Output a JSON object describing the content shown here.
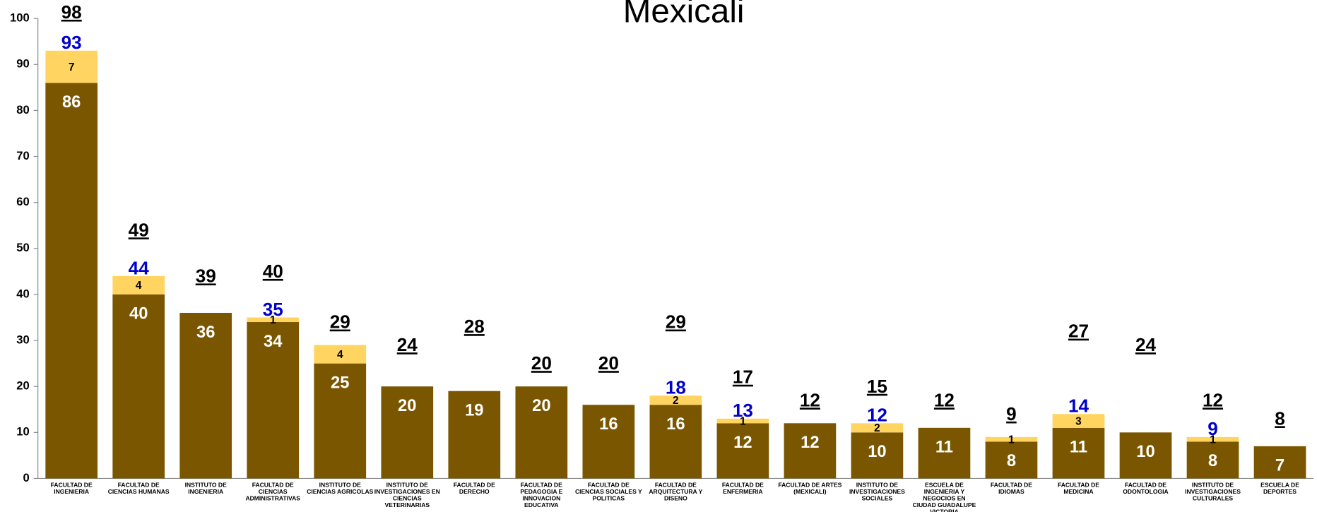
{
  "chart_data": {
    "type": "stacked-bar",
    "title": "Mexicali",
    "categories": [
      "FACULTAD DE INGENIERIA",
      "FACULTAD DE CIENCIAS HUMANAS",
      "INSTITUTO DE INGENIERIA",
      "FACULTAD DE CIENCIAS ADMINISTRATIVAS",
      "INSTITUTO DE CIENCIAS AGRICOLAS",
      "INSTITUTO DE INVESTIGACIONES EN CIENCIAS VETERINARIAS",
      "FACULTAD DE DERECHO",
      "FACULTAD DE PEDAGOGIA E INNOVACION EDUCATIVA",
      "FACULTAD DE CIENCIAS SOCIALES Y POLITICAS",
      "FACULTAD DE ARQUITECTURA Y DISENO",
      "FACULTAD DE ENFERMERIA",
      "FACULTAD DE ARTES (MEXICALI)",
      "INSTITUTO DE INVESTIGACIONES SOCIALES",
      "ESCUELA DE INGENIERIA Y NEGOCIOS EN CIUDAD GUADALUPE VICTORIA",
      "FACULTAD DE IDIOMAS",
      "FACULTAD DE MEDICINA",
      "FACULTAD DE ODONTOLOGIA",
      "INSTITUTO DE INVESTIGACIONES CULTURALES",
      "ESCUELA DE DEPORTES"
    ],
    "series": [
      {
        "color": "#7a5600",
        "label_color": "#ffffff",
        "values": [
          86,
          40,
          36,
          34,
          25,
          20,
          19,
          20,
          16,
          16,
          12,
          12,
          10,
          11,
          8,
          11,
          10,
          8,
          7
        ]
      },
      {
        "color": "#ffd460",
        "label_color": "#000000",
        "values": [
          7,
          4,
          null,
          1,
          4,
          null,
          null,
          null,
          null,
          2,
          1,
          null,
          2,
          null,
          1,
          3,
          null,
          1,
          null
        ]
      }
    ],
    "sum_labels": {
      "color": "#0000cc",
      "values": [
        93,
        44,
        null,
        35,
        null,
        null,
        null,
        null,
        null,
        18,
        13,
        null,
        12,
        null,
        null,
        14,
        null,
        9,
        null
      ]
    },
    "top_labels": [
      98,
      49,
      39,
      40,
      29,
      24,
      28,
      20,
      20,
      29,
      17,
      12,
      15,
      12,
      9,
      27,
      24,
      12,
      8
    ],
    "ylim": [
      0,
      100
    ],
    "yticks": [
      0,
      10,
      20,
      30,
      40,
      50,
      60,
      70,
      80,
      90,
      100
    ]
  }
}
